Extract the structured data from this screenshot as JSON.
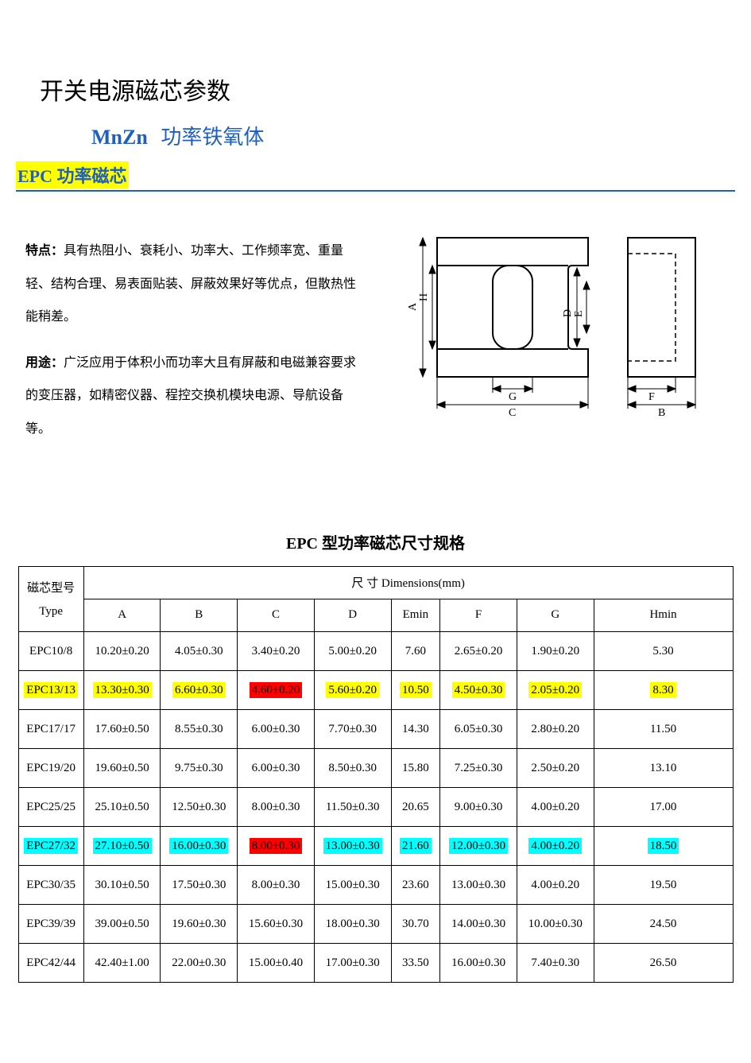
{
  "headings": {
    "main": "开关电源磁芯参数",
    "mnzn": "MnZn",
    "ferrite": "功率铁氧体",
    "epc": "EPC 功率磁芯"
  },
  "description": {
    "feature_label": "特点：",
    "feature_text": "具有热阻小、衰耗小、功率大、工作频率宽、重量轻、结构合理、易表面贴装、屏蔽效果好等优点，但散热性能稍差。",
    "usage_label": "用途：",
    "usage_text": "广泛应用于体积小而功率大且有屏蔽和电磁兼容要求的变压器，如精密仪器、程控交换机模块电源、导航设备等。"
  },
  "diagram": {
    "labels": {
      "A": "A",
      "H": "H",
      "D": "D",
      "E": "E",
      "G": "G",
      "C": "C",
      "F": "F",
      "B": "B"
    },
    "stroke": "#000000",
    "bg": "#ffffff"
  },
  "table": {
    "title": "EPC 型功率磁芯尺寸规格",
    "header_type1": "磁芯型号",
    "header_type2": "Type",
    "header_dim": "尺 寸 Dimensions(mm)",
    "columns": [
      "A",
      "B",
      "C",
      "D",
      "Emin",
      "F",
      "G",
      "Hmin"
    ],
    "highlight_palette": {
      "yellow": "#ffff00",
      "red": "#ff0000",
      "cyan": "#00ffff",
      "none": ""
    },
    "rows": [
      {
        "type": "EPC10/8",
        "cells": [
          "10.20±0.20",
          "4.05±0.30",
          "3.40±0.20",
          "5.00±0.20",
          "7.60",
          "2.65±0.20",
          "1.90±0.20",
          "5.30"
        ],
        "hl": [
          "",
          "",
          "",
          "",
          "",
          "",
          "",
          "",
          ""
        ]
      },
      {
        "type": "EPC13/13",
        "cells": [
          "13.30±0.30",
          "6.60±0.30",
          "4.60±0.20",
          "5.60±0.20",
          "10.50",
          "4.50±0.30",
          "2.05±0.20",
          "8.30"
        ],
        "hl": [
          "yellow",
          "yellow",
          "yellow",
          "red",
          "yellow",
          "yellow",
          "yellow",
          "yellow",
          "yellow"
        ]
      },
      {
        "type": "EPC17/17",
        "cells": [
          "17.60±0.50",
          "8.55±0.30",
          "6.00±0.30",
          "7.70±0.30",
          "14.30",
          "6.05±0.30",
          "2.80±0.20",
          "11.50"
        ],
        "hl": [
          "",
          "",
          "",
          "",
          "",
          "",
          "",
          "",
          ""
        ]
      },
      {
        "type": "EPC19/20",
        "cells": [
          "19.60±0.50",
          "9.75±0.30",
          "6.00±0.30",
          "8.50±0.30",
          "15.80",
          "7.25±0.30",
          "2.50±0.20",
          "13.10"
        ],
        "hl": [
          "",
          "",
          "",
          "",
          "",
          "",
          "",
          "",
          ""
        ]
      },
      {
        "type": "EPC25/25",
        "cells": [
          "25.10±0.50",
          "12.50±0.30",
          "8.00±0.30",
          "11.50±0.30",
          "20.65",
          "9.00±0.30",
          "4.00±0.20",
          "17.00"
        ],
        "hl": [
          "",
          "",
          "",
          "",
          "",
          "",
          "",
          "",
          ""
        ]
      },
      {
        "type": "EPC27/32",
        "cells": [
          "27.10±0.50",
          "16.00±0.30",
          "8.00±0.30",
          "13.00±0.30",
          "21.60",
          "12.00±0.30",
          "4.00±0.20",
          "18.50"
        ],
        "hl": [
          "cyan",
          "cyan",
          "cyan",
          "red",
          "cyan",
          "cyan",
          "cyan",
          "cyan",
          "cyan"
        ]
      },
      {
        "type": "EPC30/35",
        "cells": [
          "30.10±0.50",
          "17.50±0.30",
          "8.00±0.30",
          "15.00±0.30",
          "23.60",
          "13.00±0.30",
          "4.00±0.20",
          "19.50"
        ],
        "hl": [
          "",
          "",
          "",
          "",
          "",
          "",
          "",
          "",
          ""
        ]
      },
      {
        "type": "EPC39/39",
        "cells": [
          "39.00±0.50",
          "19.60±0.30",
          "15.60±0.30",
          "18.00±0.30",
          "30.70",
          "14.00±0.30",
          "10.00±0.30",
          "24.50"
        ],
        "hl": [
          "",
          "",
          "",
          "",
          "",
          "",
          "",
          "",
          ""
        ]
      },
      {
        "type": "EPC42/44",
        "cells": [
          "42.40±1.00",
          "22.00±0.30",
          "15.00±0.40",
          "17.00±0.30",
          "33.50",
          "16.00±0.30",
          "7.40±0.30",
          "26.50"
        ],
        "hl": [
          "",
          "",
          "",
          "",
          "",
          "",
          "",
          "",
          ""
        ]
      }
    ]
  }
}
